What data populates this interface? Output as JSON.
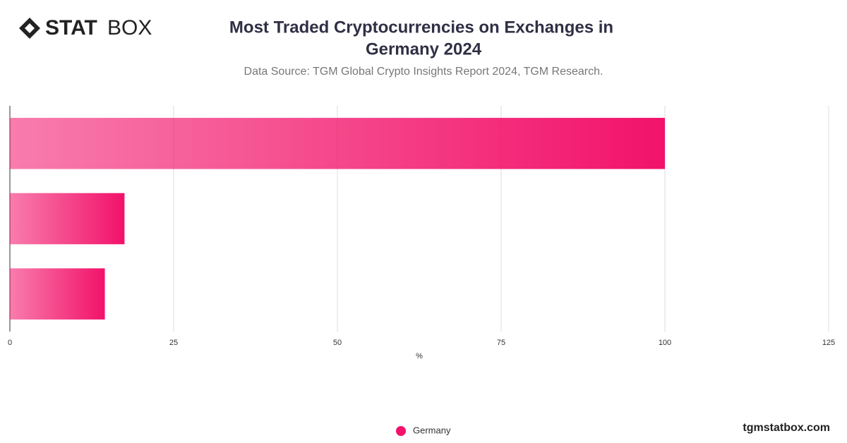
{
  "brand": {
    "strong": "STAT",
    "light": "BOX",
    "site": "tgmstatbox.com"
  },
  "chart_data": {
    "type": "hbar",
    "title": [
      "Most Traded Cryptocurrencies on Exchanges in",
      "Germany 2024"
    ],
    "subtitle": "Data Source: TGM Global Crypto Insights Report 2024, TGM Research.",
    "x_label": "%",
    "categories": [
      null,
      null,
      null
    ],
    "series": [
      {
        "name": "Germany",
        "color": "#f2126a",
        "values": [
          100,
          17.5,
          14.5
        ]
      }
    ],
    "xlim": [
      0,
      125
    ],
    "xticks": [
      0,
      25,
      50,
      75,
      100,
      125
    ],
    "grid": true,
    "legend": "bottom"
  }
}
